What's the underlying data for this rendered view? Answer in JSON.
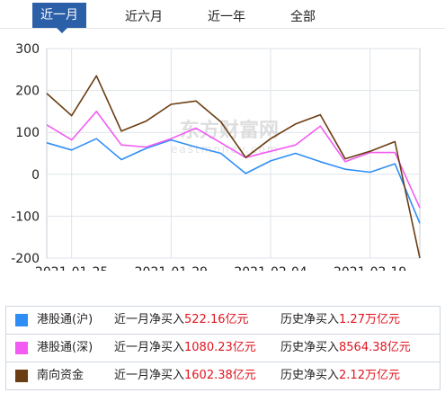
{
  "tabs": [
    {
      "label": "近一月",
      "active": true
    },
    {
      "label": "近六月",
      "active": false
    },
    {
      "label": "近一年",
      "active": false
    },
    {
      "label": "全部",
      "active": false
    }
  ],
  "watermark": {
    "main": "东方财富网",
    "sub": "eastmoney.com"
  },
  "legend": [
    {
      "name": "港股通(沪)",
      "color": "#2f8ef5",
      "month_label": "近一月净买入",
      "month_value": "522.16亿元",
      "total_label": "历史净买入",
      "total_value": "1.27万亿元"
    },
    {
      "name": "港股通(深)",
      "color": "#f25cf2",
      "month_label": "近一月净买入",
      "month_value": "1080.23亿元",
      "total_label": "历史净买入",
      "total_value": "8564.38亿元"
    },
    {
      "name": "南向资金",
      "color": "#6b3d12",
      "month_label": "近一月净买入",
      "month_value": "1602.38亿元",
      "total_label": "历史净买入",
      "total_value": "2.12万亿元"
    }
  ],
  "chart_data": {
    "type": "line",
    "ylim": [
      -200,
      300
    ],
    "yticks": [
      300,
      200,
      100,
      0,
      -100,
      -200
    ],
    "xtick_labels": [
      "2021-01-25",
      "2021-01-29",
      "2021-02-04",
      "2021-02-19"
    ],
    "xtick_indices": [
      1,
      5,
      9,
      13
    ],
    "grid": true,
    "series": [
      {
        "name": "港股通(沪)",
        "color": "#2f8ef5",
        "values": [
          75,
          58,
          85,
          35,
          62,
          82,
          65,
          50,
          2,
          32,
          50,
          30,
          12,
          5,
          25,
          -117
        ]
      },
      {
        "name": "港股通(深)",
        "color": "#f25cf2",
        "values": [
          118,
          82,
          150,
          70,
          65,
          85,
          110,
          75,
          40,
          55,
          70,
          115,
          30,
          52,
          52,
          -80
        ]
      },
      {
        "name": "南向资金",
        "color": "#6b3d12",
        "values": [
          193,
          140,
          235,
          103,
          127,
          167,
          175,
          125,
          40,
          85,
          120,
          142,
          37,
          55,
          78,
          -200
        ]
      }
    ]
  }
}
